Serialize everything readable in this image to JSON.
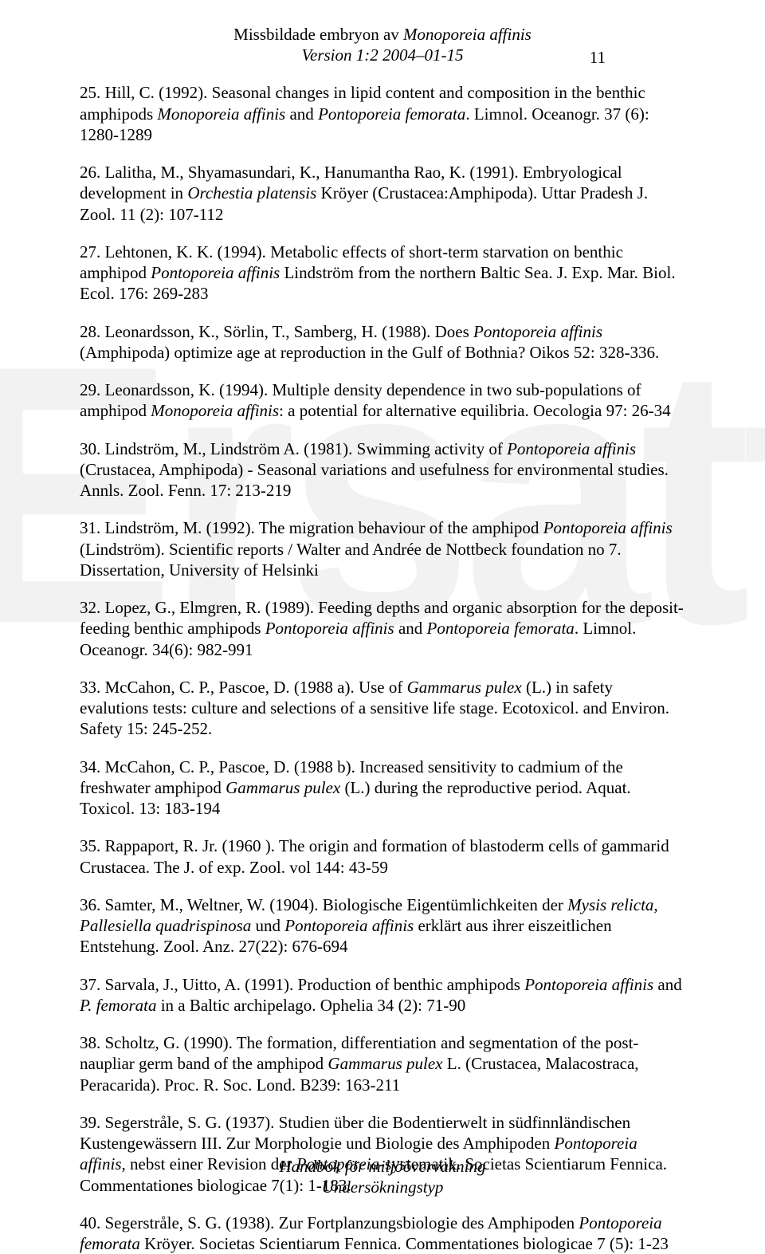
{
  "header": {
    "title_plain": "Missbildade embryon av ",
    "title_italic": "Monoporeia affinis",
    "version": "Version 1:2 2004–01-15",
    "page_number": "11"
  },
  "watermark": "Ersatt",
  "refs": [
    {
      "n": "25.",
      "plain1": "Hill, C. (1992). Seasonal changes in lipid content and composition in the benthic amphipods ",
      "it1": "Monoporeia affinis",
      "plain2": " and ",
      "it2": "Pontoporeia femorata",
      "plain3": ". Limnol. Oceanogr. 37 (6): 1280-1289"
    },
    {
      "n": "26.",
      "plain1": "Lalitha, M., Shyamasundari, K., Hanumantha Rao, K. (1991). Embryological development in ",
      "it1": "Orchestia platensis",
      "plain2": " Kröyer (Crustacea:Amphipoda). Uttar Pradesh J. Zool. 11 (2): 107-112",
      "it2": "",
      "plain3": ""
    },
    {
      "n": "27.",
      "plain1": "Lehtonen, K. K. (1994). Metabolic effects of short-term starvation on benthic amphipod ",
      "it1": "Pontoporeia affinis",
      "plain2": " Lindström from the northern Baltic Sea. J. Exp. Mar. Biol. Ecol. 176: 269-283",
      "it2": "",
      "plain3": ""
    },
    {
      "n": "28.",
      "plain1": "Leonardsson, K., Sörlin, T., Samberg, H. (1988). Does ",
      "it1": "Pontoporeia affinis ",
      "plain2": " (Amphipoda) optimize age at reproduction in the Gulf of Bothnia? Oikos 52: 328-336.",
      "it2": "",
      "plain3": ""
    },
    {
      "n": "29.",
      "plain1": "Leonardsson, K. (1994). Multiple density dependence in two sub-populations of amphipod ",
      "it1": "Monoporeia affinis",
      "plain2": ": a potential for alternative equilibria. Oecologia 97: 26-34",
      "it2": "",
      "plain3": ""
    },
    {
      "n": "30.",
      "plain1": "Lindström, M., Lindström A. (1981). Swimming activity of ",
      "it1": "Pontoporeia affinis",
      "plain2": " (Crustacea, Amphipoda) - Seasonal variations and usefulness for environmental studies. Annls. Zool. Fenn. 17: 213-219",
      "it2": "",
      "plain3": ""
    },
    {
      "n": "31.",
      "plain1": "Lindström, M. (1992). The migration behaviour of the amphipod ",
      "it1": "Pontoporeia affinis",
      "plain2": " (Lindström). Scientific reports / Walter and Andrée de Nottbeck foundation no 7. Dissertation, University of Helsinki",
      "it2": "",
      "plain3": ""
    },
    {
      "n": "32.",
      "plain1": "Lopez, G., Elmgren, R. (1989). Feeding depths and organic absorption for the deposit-feeding benthic amphipods ",
      "it1": "Pontoporeia affinis",
      "plain2": " and ",
      "it2": "Pontoporeia femorata",
      "plain3": ". Limnol. Oceanogr. 34(6): 982-991"
    },
    {
      "n": "33.",
      "plain1": "McCahon, C. P., Pascoe, D. (1988 a). Use of ",
      "it1": "Gammarus pulex",
      "plain2": " (L.) in safety evalutions tests: culture and selections of a sensitive life stage. Ecotoxicol. and Environ. Safety 15: 245-252.",
      "it2": "",
      "plain3": ""
    },
    {
      "n": "34.",
      "plain1": "McCahon, C. P., Pascoe, D. (1988 b). Increased sensitivity to cadmium of the freshwater amphipod ",
      "it1": "Gammarus pulex",
      "plain2": " (L.) during the reproductive period. Aquat. Toxicol. 13: 183-194",
      "it2": "",
      "plain3": ""
    },
    {
      "n": "35.",
      "plain1": "Rappaport, R. Jr. (1960 ). The origin and formation of blastoderm cells of gammarid Crustacea. The J. of exp. Zool. vol 144: 43-59",
      "it1": "",
      "plain2": "",
      "it2": "",
      "plain3": ""
    },
    {
      "n": "36.",
      "plain1": "Samter, M., Weltner, W. (1904). Biologische Eigentümlichkeiten der ",
      "it1": "Mysis relicta, Pallesiella quadrispinosa",
      "plain2": " und ",
      "it2": "Pontoporeia affinis",
      "plain3": " erklärt aus ihrer eiszeitlichen Entstehung. Zool. Anz. 27(22): 676-694"
    },
    {
      "n": "37.",
      "plain1": "Sarvala, J., Uitto, A. (1991). Production of benthic amphipods ",
      "it1": "Pontoporeia affinis",
      "plain2": " and ",
      "it2": "P. femorata",
      "plain3": " in a Baltic archipelago. Ophelia 34 (2): 71-90"
    },
    {
      "n": "38.",
      "plain1": "Scholtz, G. (1990). The formation, differentiation and segmentation of the post-naupliar germ band of the amphipod ",
      "it1": "Gammarus pulex",
      "plain2": " L. (Crustacea, Malacostraca, Peracarida). Proc. R. Soc. Lond. B239: 163-211",
      "it2": "",
      "plain3": ""
    },
    {
      "n": "39.",
      "plain1": "Segerstråle, S. G. (1937). Studien über die Bodentierwelt in südfinnländischen Kustengewässern III. Zur Morphologie und Biologie des Amphipoden ",
      "it1": "Pontoporeia affinis",
      "plain2": ", nebst einer Revision der ",
      "it2": "Pontoporeia",
      "plain3": "-systematik. Societas Scientiarum Fennica. Commentationes biologicae 7(1): 1-183."
    },
    {
      "n": "40.",
      "plain1": "Segerstråle, S. G. (1938). Zur Fortplanzungsbiologie des Amphipoden ",
      "it1": "Pontoporeia femorata",
      "plain2": " Kröyer. Societas Scientiarum Fennica. Commentationes biologicae 7 (5): 1-23",
      "it2": "",
      "plain3": ""
    }
  ],
  "footer": {
    "line1": "Handbok för miljöövervakning",
    "line2": "Undersökningstyp"
  }
}
